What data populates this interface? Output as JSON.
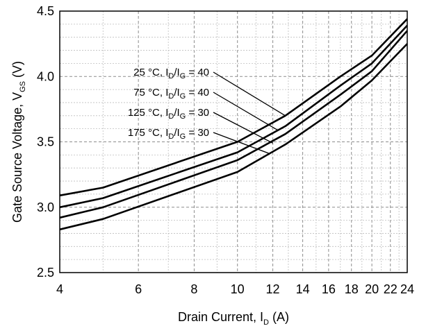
{
  "chart_data": {
    "type": "line",
    "xscale": "log",
    "xlim": [
      4,
      24
    ],
    "ylim": [
      2.5,
      4.5
    ],
    "grid": true,
    "x_ticks": [
      4,
      6,
      8,
      10,
      12,
      14,
      16,
      18,
      20,
      22,
      24
    ],
    "x_tick_labels": [
      "4",
      "6",
      "8",
      "10",
      "12",
      "14",
      "16",
      "18",
      "20",
      "22",
      "24"
    ],
    "y_ticks": [
      2.5,
      3.0,
      3.5,
      4.0,
      4.5
    ],
    "y_tick_labels": [
      "2.5",
      "3.0",
      "3.5",
      "4.0",
      "4.5"
    ],
    "xlabel": {
      "main": "Drain Current, I",
      "sub": "D",
      "unit": " (A)"
    },
    "ylabel": {
      "main": "Gate Source Voltage, V",
      "sub": "GS",
      "unit": " (V)"
    },
    "series": [
      {
        "name": "25 °C, ID/IG = 40",
        "x": [
          4,
          5,
          10,
          12.8,
          17,
          20,
          24
        ],
        "y": [
          3.09,
          3.15,
          3.5,
          3.7,
          4.0,
          4.16,
          4.44
        ]
      },
      {
        "name": "75 °C, ID/IG = 40",
        "x": [
          4,
          5,
          10,
          12.8,
          17,
          20,
          24
        ],
        "y": [
          3.0,
          3.07,
          3.42,
          3.62,
          3.93,
          4.1,
          4.39
        ]
      },
      {
        "name": "125 °C, ID/IG = 30",
        "x": [
          4,
          5,
          10,
          12.8,
          17,
          20,
          24
        ],
        "y": [
          2.92,
          3.0,
          3.36,
          3.56,
          3.86,
          4.04,
          4.35
        ]
      },
      {
        "name": "175 °C, ID/IG = 30",
        "x": [
          4,
          5,
          10,
          12.8,
          17,
          20,
          24
        ],
        "y": [
          2.83,
          2.91,
          3.27,
          3.48,
          3.77,
          3.97,
          4.25
        ]
      }
    ],
    "annotations": [
      {
        "prefix": "25 °C, I",
        "sub1": "D",
        "mid": "/I",
        "sub2": "G",
        "suffix": " = 40",
        "target_x": 12.8,
        "target_y": 3.7
      },
      {
        "prefix": "75 °C, I",
        "sub1": "D",
        "mid": "/I",
        "sub2": "G",
        "suffix": " = 40",
        "target_x": 12.3,
        "target_y": 3.59
      },
      {
        "prefix": "125 °C, I",
        "sub1": "D",
        "mid": "/I",
        "sub2": "G",
        "suffix": " = 30",
        "target_x": 12.0,
        "target_y": 3.49
      },
      {
        "prefix": "175 °C, I",
        "sub1": "D",
        "mid": "/I",
        "sub2": "G",
        "suffix": " = 30",
        "target_x": 11.8,
        "target_y": 3.41
      }
    ]
  }
}
